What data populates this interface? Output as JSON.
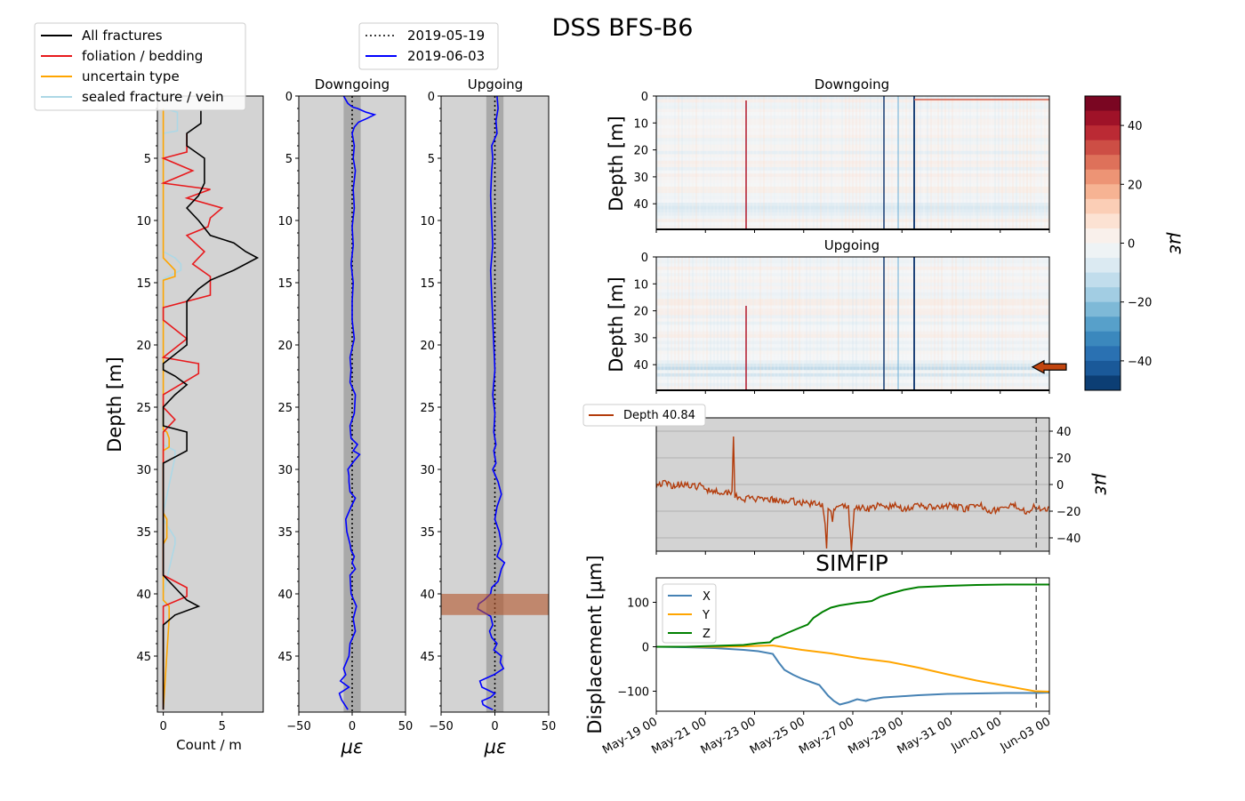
{
  "figure": {
    "title": "DSS BFS-B6"
  },
  "colors": {
    "fracture_all": "#000000",
    "fracture_foliation": "#e8191c",
    "fracture_uncertain": "#ffa500",
    "fracture_sealed": "#add8e6",
    "strain_baseline": "#000000",
    "strain_current": "#0000ff",
    "panel_bg": "#d3d3d3",
    "band_dark": "#a9a9a9",
    "highlight": "#b4552a",
    "depth_series": "#b33c0c",
    "simfip_x": "#4682b4",
    "simfip_y": "#ffa500",
    "simfip_z": "#008000"
  },
  "chart_data": [
    {
      "type": "line",
      "panel": "fractures",
      "xlabel": "Count / m",
      "ylabel": "Depth [m]",
      "xlim": [
        -0.5,
        8.5
      ],
      "ylim": [
        49.5,
        0
      ],
      "x_ticks": [
        "0",
        "5"
      ],
      "y_ticks": [
        "5",
        "10",
        "15",
        "20",
        "25",
        "30",
        "35",
        "40",
        "45"
      ],
      "legend_placement": "upper-left",
      "series": [
        {
          "name": "All fractures",
          "x": [
            3.2,
            3.2,
            2.0,
            2.0,
            3.5,
            3.5,
            3.0,
            2.0,
            3.0,
            4.0,
            6.0,
            7.0,
            8.0,
            6.0,
            4.0,
            3.0,
            2.0,
            2.0,
            0,
            0,
            1.0,
            2.0,
            1.0,
            0,
            0,
            2.0,
            2.0,
            0,
            0,
            0,
            0,
            0,
            1.0,
            2.0,
            3.0,
            1.0,
            0,
            0
          ],
          "y": [
            1.2,
            2.2,
            3.0,
            4.0,
            5.0,
            7.0,
            8.0,
            9.0,
            10.0,
            11.2,
            11.8,
            12.5,
            13.0,
            14.0,
            14.8,
            15.5,
            16.5,
            20.0,
            21.5,
            22.0,
            22.5,
            23.2,
            24.0,
            25.0,
            26.5,
            27.0,
            28.5,
            29.5,
            32.0,
            35.0,
            38.0,
            38.5,
            39.5,
            40.5,
            41.0,
            41.7,
            42.5,
            49.3
          ]
        },
        {
          "name": "foliation / bedding",
          "x": [
            2.0,
            2.0,
            0,
            2.5,
            0,
            4.0,
            2.0,
            5.0,
            4.0,
            3.8,
            2.0,
            3.5,
            2.5,
            4.0,
            4.0,
            0,
            0,
            2.0,
            0,
            3.0,
            3.0,
            0,
            0,
            1.0,
            0,
            0,
            0,
            0,
            0,
            0,
            0,
            1.0,
            2.0,
            2.0,
            0,
            0
          ],
          "y": [
            3.0,
            4.5,
            5.0,
            6.0,
            7.0,
            7.5,
            8.2,
            9.0,
            9.8,
            10.5,
            11.2,
            12.5,
            13.5,
            14.5,
            16.0,
            17.0,
            18.0,
            19.5,
            21.0,
            21.5,
            22.3,
            24.0,
            25.0,
            26.0,
            27.0,
            30.0,
            33.0,
            36.0,
            37.0,
            38.0,
            38.5,
            39.0,
            39.5,
            40.2,
            41.0,
            49.3
          ]
        },
        {
          "name": "uncertain type",
          "x": [
            0,
            0,
            0,
            0.8,
            1.0,
            1.0,
            0,
            0,
            0,
            0.3,
            0.5,
            0.5,
            0,
            0,
            0.3,
            0.3,
            0,
            0,
            0.5,
            0.5,
            0
          ],
          "y": [
            1.0,
            12.0,
            13.0,
            13.8,
            14.0,
            14.5,
            14.8,
            26.0,
            26.8,
            27.0,
            27.5,
            28.2,
            28.5,
            33.5,
            34.0,
            35.5,
            36.0,
            40.5,
            41.0,
            42.0,
            49.3
          ]
        },
        {
          "name": "sealed fracture / vein",
          "x": [
            0,
            1.2,
            1.2,
            0,
            0,
            1.0,
            1.5,
            1.5,
            0,
            0,
            0,
            1.0,
            1.0,
            0,
            0,
            1.0,
            1.0,
            0,
            0
          ],
          "y": [
            1.0,
            1.3,
            2.8,
            3.0,
            12.5,
            13.0,
            13.5,
            14.0,
            14.7,
            27.5,
            28.0,
            28.5,
            29.0,
            33.5,
            34.0,
            35.5,
            36.0,
            40.0,
            49.3
          ]
        }
      ]
    },
    {
      "type": "line",
      "panel": "profile-downgoing",
      "title": "Downgoing",
      "xlabel": "με",
      "xlim": [
        -50,
        50
      ],
      "ylim": [
        49.5,
        0
      ],
      "x_ticks": [
        "−50",
        "0",
        "50"
      ],
      "y_ticks": [
        "0",
        "5",
        "10",
        "15",
        "20",
        "25",
        "30",
        "35",
        "40",
        "45"
      ],
      "band": [
        -8,
        8
      ],
      "series": [
        {
          "name": "2019-05-19",
          "style": "dotted",
          "x": [
            0,
            0
          ],
          "y": [
            0,
            49.5
          ]
        },
        {
          "name": "2019-06-03",
          "style": "solid",
          "x": [
            -8,
            -6,
            -4,
            -1,
            1,
            5,
            13,
            21,
            14,
            6,
            2,
            0,
            2,
            1,
            3,
            1,
            2,
            0,
            1,
            -1,
            1,
            0,
            0,
            2,
            -2,
            -1,
            -2,
            3,
            2,
            -2,
            -1,
            5,
            1,
            7,
            2,
            -4,
            -3,
            -3,
            -2,
            0,
            3,
            -1,
            -6,
            -5,
            -2,
            -1,
            2,
            0,
            3,
            -2,
            -1,
            4,
            1,
            3,
            -2,
            -3,
            -8,
            -6,
            -11,
            -3,
            -12,
            -10,
            -4
          ],
          "y": [
            0.0,
            0.3,
            0.6,
            0.8,
            0.9,
            1.0,
            1.3,
            1.5,
            1.8,
            2.1,
            2.5,
            3.0,
            4.0,
            5.0,
            6.0,
            7.5,
            9.0,
            10.5,
            12.0,
            13.5,
            15.0,
            16.5,
            18.0,
            19.5,
            21.0,
            22.0,
            23.0,
            24.0,
            25.5,
            26.5,
            27.5,
            28.0,
            28.5,
            28.8,
            29.3,
            30.0,
            30.5,
            31.0,
            31.8,
            32.0,
            32.3,
            33.0,
            34.0,
            35.0,
            36.0,
            36.5,
            37.0,
            37.5,
            38.0,
            38.5,
            40.0,
            41.0,
            42.0,
            43.0,
            44.0,
            45.0,
            46.0,
            46.5,
            47.0,
            47.5,
            48.0,
            48.5,
            49.3
          ]
        }
      ]
    },
    {
      "type": "line",
      "panel": "profile-upgoing",
      "title": "Upgoing",
      "xlabel": "με",
      "xlim": [
        -50,
        50
      ],
      "ylim": [
        49.5,
        0
      ],
      "x_ticks": [
        "−50",
        "0",
        "50"
      ],
      "y_ticks": [
        "0",
        "5",
        "10",
        "15",
        "20",
        "25",
        "30",
        "35",
        "40",
        "45"
      ],
      "band": [
        -8,
        8
      ],
      "highlight_depth": [
        40.0,
        41.7
      ],
      "series": [
        {
          "name": "2019-05-19",
          "style": "dotted",
          "x": [
            0,
            0
          ],
          "y": [
            0,
            49.5
          ]
        },
        {
          "name": "2019-06-03",
          "style": "solid",
          "x": [
            2,
            3,
            1,
            2,
            -3,
            -2,
            -3,
            -4,
            -3,
            -2,
            -4,
            -3,
            -2,
            -1,
            0,
            -2,
            0,
            -1,
            1,
            -1,
            0,
            1,
            -2,
            3,
            6,
            2,
            0,
            4,
            6,
            2,
            9,
            6,
            3,
            -3,
            -4,
            -10,
            -15,
            -16,
            -10,
            -4,
            -2,
            -5,
            -3,
            2,
            -1,
            6,
            5,
            8,
            -1,
            -14,
            -12,
            0,
            -4,
            -12,
            -11,
            -7,
            -2
          ],
          "y": [
            0.0,
            1.0,
            2.0,
            3.0,
            4.0,
            5.0,
            6.0,
            8.0,
            10.0,
            12.0,
            14.0,
            16.0,
            18.0,
            20.0,
            22.0,
            24.0,
            25.5,
            27.0,
            28.0,
            28.5,
            29.0,
            29.5,
            30.0,
            31.0,
            32.0,
            33.0,
            34.0,
            35.0,
            36.0,
            37.0,
            37.5,
            38.0,
            39.0,
            39.5,
            40.0,
            40.5,
            40.8,
            41.2,
            41.5,
            41.8,
            42.5,
            43.0,
            43.5,
            44.0,
            44.5,
            45.0,
            45.5,
            46.0,
            46.5,
            47.0,
            47.5,
            48.0,
            48.3,
            48.6,
            48.9,
            49.1,
            49.3
          ]
        }
      ]
    },
    {
      "type": "heatmap",
      "panel": "waterfall-downgoing",
      "title": "Downgoing",
      "ylabel": "Depth [m]",
      "y_ticks": [
        "0",
        "10",
        "20",
        "30",
        "40"
      ],
      "ylim": [
        49.5,
        0
      ],
      "colorbar": {
        "label": "με",
        "range": [
          -50,
          50
        ],
        "ticks": [
          "40",
          "20",
          "0",
          "−20",
          "−40"
        ]
      }
    },
    {
      "type": "heatmap",
      "panel": "waterfall-upgoing",
      "title": "Upgoing",
      "ylabel": "Depth [m]",
      "y_ticks": [
        "0",
        "10",
        "20",
        "30",
        "40"
      ],
      "ylim": [
        49.5,
        0
      ],
      "marked_depth": 40.84
    },
    {
      "type": "line",
      "panel": "depth-timeseries",
      "ylabel": "με",
      "ylim": [
        -50,
        50
      ],
      "y_ticks": [
        "40",
        "20",
        "0",
        "−20",
        "−40"
      ],
      "grid": true,
      "legend_placement": "upper-left",
      "series": [
        {
          "name": "Depth 40.84",
          "x": [
            0.0,
            0.3,
            0.6,
            0.9,
            1.2,
            1.5,
            1.8,
            2.1,
            2.4,
            2.6,
            2.65,
            2.7,
            2.75,
            3.0,
            3.3,
            3.6,
            3.9,
            4.2,
            4.5,
            4.8,
            5.2,
            5.6,
            5.7,
            5.8,
            5.85,
            5.9,
            6.0,
            6.05,
            6.1,
            6.2,
            6.4,
            6.6,
            6.7,
            6.8,
            7.0,
            7.3,
            7.6,
            7.9,
            8.2,
            8.5,
            8.8,
            9.1,
            9.4,
            9.7,
            10.0,
            10.3,
            10.6,
            10.9,
            11.2,
            11.5,
            11.8,
            12.1,
            12.4,
            12.7,
            13.0,
            13.3,
            13.5
          ],
          "y": [
            0,
            1,
            -1,
            1,
            -2,
            -1,
            -4,
            -5,
            -6,
            -5,
            36,
            -10,
            -8,
            -11,
            -10,
            -12,
            -11,
            -13,
            -12,
            -13,
            -14,
            -15,
            -14,
            -30,
            -48,
            -18,
            -20,
            -28,
            -17,
            -18,
            -16,
            -17,
            -50,
            -18,
            -17,
            -18,
            -16,
            -17,
            -16,
            -18,
            -17,
            -16,
            -17,
            -18,
            -16,
            -17,
            -18,
            -17,
            -16,
            -20,
            -18,
            -17,
            -16,
            -20,
            -17,
            -18,
            -17
          ]
        }
      ],
      "vertical_marker_x": 13.05
    },
    {
      "type": "line",
      "panel": "simfip",
      "title": "SIMFIP",
      "ylabel": "Displacement [μm]",
      "ylim": [
        -145,
        155
      ],
      "y_ticks": [
        "100",
        "0",
        "−100"
      ],
      "x_ticks": [
        "May-19 00",
        "May-21 00",
        "May-23 00",
        "May-25 00",
        "May-27 00",
        "May-29 00",
        "May-31 00",
        "Jun-01 00",
        "Jun-03 00"
      ],
      "legend_placement": "upper-left",
      "series": [
        {
          "name": "X",
          "x": [
            0.0,
            1.0,
            2.0,
            3.0,
            3.5,
            4.0,
            4.2,
            4.4,
            4.7,
            5.0,
            5.3,
            5.6,
            5.9,
            6.1,
            6.3,
            6.6,
            6.9,
            7.2,
            7.4,
            7.8,
            8.3,
            9.0,
            10.0,
            11.0,
            12.0,
            13.0,
            13.5
          ],
          "y": [
            0,
            -1,
            -3,
            -7,
            -10,
            -16,
            -35,
            -52,
            -63,
            -72,
            -79,
            -86,
            -110,
            -122,
            -130,
            -125,
            -118,
            -122,
            -118,
            -114,
            -112,
            -109,
            -106,
            -105,
            -104,
            -104,
            -103
          ]
        },
        {
          "name": "Y",
          "x": [
            0.0,
            1.0,
            2.0,
            3.0,
            3.5,
            4.0,
            4.3,
            5.0,
            6.0,
            7.0,
            8.0,
            9.0,
            10.0,
            11.0,
            12.0,
            13.0,
            13.5
          ],
          "y": [
            0,
            0,
            0,
            1,
            2,
            3,
            0,
            -7,
            -15,
            -26,
            -34,
            -47,
            -62,
            -76,
            -88,
            -100,
            -101
          ]
        },
        {
          "name": "Z",
          "x": [
            0.0,
            1.0,
            2.0,
            3.0,
            3.5,
            3.9,
            4.05,
            4.2,
            4.5,
            4.9,
            5.2,
            5.4,
            5.7,
            6.0,
            6.3,
            6.6,
            6.9,
            7.2,
            7.4,
            7.7,
            8.0,
            8.5,
            9.0,
            10.0,
            11.0,
            12.0,
            13.0,
            13.5
          ],
          "y": [
            0,
            0,
            2,
            4,
            8,
            10,
            19,
            22,
            31,
            42,
            50,
            65,
            78,
            88,
            93,
            96,
            99,
            101,
            103,
            113,
            119,
            128,
            134,
            137,
            139,
            140,
            140,
            140
          ]
        }
      ],
      "vertical_marker_x": 13.05
    }
  ]
}
